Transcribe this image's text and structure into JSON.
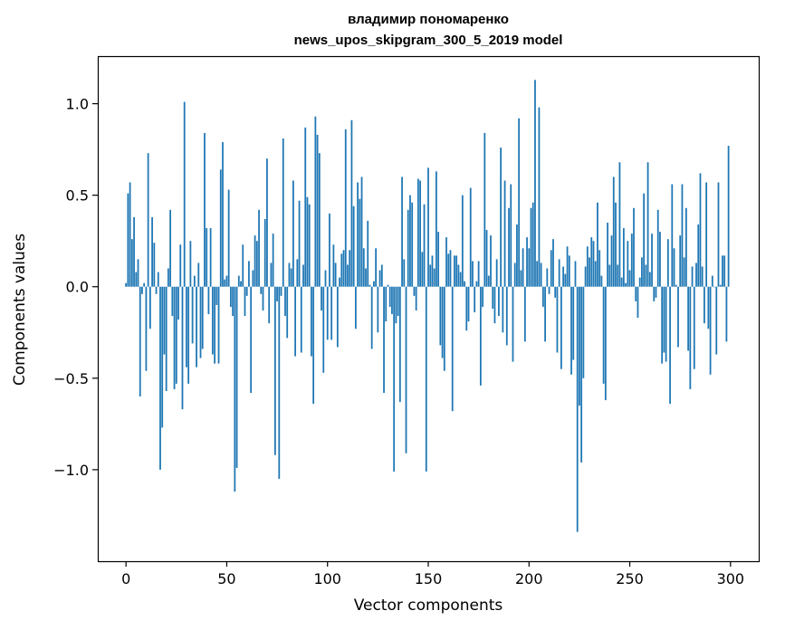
{
  "chart_data": {
    "type": "bar",
    "title": [
      "владимир пономаренко",
      "news_upos_skipgram_300_5_2019 model"
    ],
    "xlabel": "Vector components",
    "ylabel": "Components values",
    "xlim": [
      -14,
      314
    ],
    "ylim": [
      -1.5,
      1.26
    ],
    "xticks": [
      0,
      50,
      100,
      150,
      200,
      250,
      300
    ],
    "xtick_labels": [
      "0",
      "50",
      "100",
      "150",
      "200",
      "250",
      "300"
    ],
    "yticks": [
      -1.0,
      -0.5,
      0.0,
      0.5,
      1.0
    ],
    "ytick_labels": [
      "−1.0",
      "−0.5",
      "0.0",
      "0.5",
      "1.0"
    ],
    "grid": false,
    "bar_color": "#1f77b4",
    "values": [
      0.02,
      0.51,
      0.57,
      0.26,
      0.38,
      0.08,
      0.15,
      -0.6,
      -0.04,
      0.02,
      -0.46,
      0.73,
      -0.23,
      0.38,
      0.24,
      -0.04,
      0.08,
      -1.0,
      -0.77,
      -0.37,
      -0.57,
      0.1,
      0.42,
      -0.16,
      -0.56,
      -0.53,
      -0.18,
      0.23,
      -0.67,
      1.01,
      -0.44,
      -0.53,
      0.25,
      -0.31,
      0.06,
      -0.44,
      0.13,
      -0.39,
      -0.34,
      0.84,
      0.32,
      -0.15,
      0.32,
      -0.37,
      -0.42,
      -0.1,
      -0.42,
      0.64,
      0.79,
      0.04,
      0.06,
      0.53,
      -0.11,
      -0.16,
      -1.12,
      -0.99,
      0.06,
      0.03,
      0.23,
      -0.16,
      -0.05,
      0.14,
      -0.58,
      0.09,
      0.28,
      0.25,
      0.42,
      -0.04,
      -0.13,
      0.37,
      0.7,
      -0.2,
      0.13,
      0.29,
      -0.92,
      -0.08,
      -1.05,
      -0.05,
      0.81,
      -0.16,
      -0.28,
      0.13,
      0.1,
      0.58,
      -0.38,
      0.15,
      0.47,
      -0.36,
      0.12,
      0.87,
      0.49,
      0.45,
      -0.38,
      -0.64,
      0.93,
      0.83,
      0.73,
      -0.13,
      -0.47,
      0.09,
      -0.29,
      0.4,
      -0.29,
      0.23,
      0.13,
      -0.33,
      0.05,
      0.18,
      0.2,
      0.86,
      0.12,
      0.2,
      0.91,
      0.44,
      -0.23,
      0.57,
      0.48,
      0.6,
      0.21,
      0.1,
      0.36,
      0.01,
      -0.34,
      0.03,
      0.21,
      -0.25,
      0.09,
      0.12,
      -0.58,
      -0.19,
      0.01,
      -0.11,
      -0.15,
      -1.01,
      -0.2,
      -0.16,
      -0.63,
      0.6,
      0.15,
      -0.91,
      0.42,
      0.5,
      0.46,
      -0.05,
      -0.13,
      0.59,
      0.58,
      0.19,
      0.45,
      -1.01,
      0.65,
      0.12,
      0.17,
      0.1,
      0.63,
      0.3,
      -0.32,
      -0.39,
      -0.46,
      0.27,
      0.18,
      0.2,
      -0.68,
      0.17,
      0.17,
      0.12,
      0.08,
      0.5,
      0.03,
      -0.24,
      -0.19,
      0.54,
      0.14,
      -0.14,
      0.03,
      0.14,
      -0.54,
      -0.11,
      0.84,
      0.31,
      0.06,
      0.28,
      -0.12,
      -0.2,
      0.15,
      -0.16,
      0.76,
      -0.25,
      0.58,
      -0.32,
      0.43,
      0.56,
      -0.41,
      0.13,
      0.34,
      0.92,
      0.09,
      0.21,
      -0.3,
      0.27,
      0.21,
      0.43,
      0.46,
      1.13,
      0.14,
      0.98,
      0.13,
      -0.11,
      -0.3,
      0.1,
      -0.04,
      0.2,
      0.26,
      -0.06,
      -0.36,
      0.15,
      -0.45,
      0.11,
      0.07,
      0.22,
      0.17,
      -0.48,
      -0.4,
      0.14,
      -1.34,
      -0.65,
      -0.96,
      -0.5,
      0.11,
      0.22,
      0.16,
      0.27,
      0.25,
      0.14,
      0.46,
      0.2,
      0.06,
      -0.53,
      -0.62,
      0.35,
      0.12,
      0.28,
      0.6,
      0.46,
      0.12,
      0.68,
      0.05,
      0.32,
      0.02,
      0.25,
      0.09,
      0.29,
      0.43,
      -0.08,
      -0.17,
      0.05,
      0.16,
      0.51,
      0.12,
      0.68,
      0.08,
      0.29,
      -0.08,
      -0.06,
      0.42,
      0.3,
      -0.42,
      -0.36,
      -0.41,
      0.26,
      -0.64,
      0.56,
      0.21,
      0.01,
      -0.33,
      0.28,
      0.56,
      0.16,
      0.43,
      -0.35,
      -0.56,
      0.11,
      -0.45,
      0.13,
      0.34,
      0.62,
      0.11,
      -0.2,
      0.57,
      -0.23,
      -0.48,
      0.06,
      0.0,
      -0.37,
      0.57,
      0.01,
      0.17,
      0.17,
      -0.3,
      0.77
    ]
  }
}
